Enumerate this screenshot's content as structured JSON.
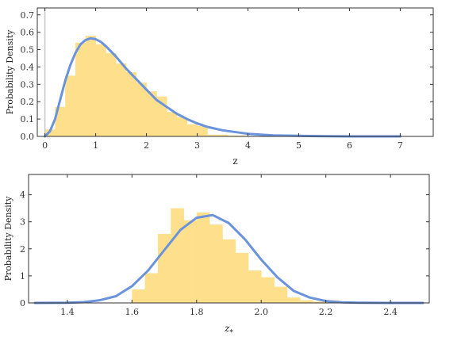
{
  "chart_data": [
    {
      "type": "bar",
      "subtype": "histogram-with-density-curve",
      "xlabel": "z",
      "ylabel": "Probability Density",
      "xlim": [
        -0.15,
        7.65
      ],
      "ylim": [
        0,
        0.74
      ],
      "x_ticks": [
        0,
        1,
        2,
        3,
        4,
        5,
        6,
        7
      ],
      "y_ticks": [
        0.0,
        0.1,
        0.2,
        0.3,
        0.4,
        0.5,
        0.6,
        0.7
      ],
      "x_tick_labels": [
        "0",
        "1",
        "2",
        "3",
        "4",
        "5",
        "6",
        "7"
      ],
      "y_tick_labels": [
        "0.0",
        "0.1",
        "0.2",
        "0.3",
        "0.4",
        "0.5",
        "0.6",
        "0.7"
      ],
      "reference_line_x": 0,
      "bin_width": 0.2,
      "bins": [
        {
          "x0": 0.0,
          "value": 0.04
        },
        {
          "x0": 0.2,
          "value": 0.17
        },
        {
          "x0": 0.4,
          "value": 0.35
        },
        {
          "x0": 0.6,
          "value": 0.54
        },
        {
          "x0": 0.8,
          "value": 0.58
        },
        {
          "x0": 1.0,
          "value": 0.53
        },
        {
          "x0": 1.2,
          "value": 0.48
        },
        {
          "x0": 1.4,
          "value": 0.42
        },
        {
          "x0": 1.6,
          "value": 0.37
        },
        {
          "x0": 1.8,
          "value": 0.31
        },
        {
          "x0": 2.0,
          "value": 0.26
        },
        {
          "x0": 2.2,
          "value": 0.23
        },
        {
          "x0": 2.4,
          "value": 0.14
        },
        {
          "x0": 2.6,
          "value": 0.11
        },
        {
          "x0": 2.8,
          "value": 0.07
        },
        {
          "x0": 3.0,
          "value": 0.06
        },
        {
          "x0": 3.2,
          "value": 0.01
        },
        {
          "x0": 3.4,
          "value": 0.01
        },
        {
          "x0": 3.6,
          "value": 0.005
        },
        {
          "x0": 3.8,
          "value": 0.005
        }
      ],
      "curve": {
        "x": [
          0.0,
          0.1,
          0.2,
          0.3,
          0.4,
          0.5,
          0.6,
          0.7,
          0.8,
          0.9,
          1.0,
          1.1,
          1.2,
          1.4,
          1.6,
          1.8,
          2.0,
          2.2,
          2.4,
          2.6,
          2.8,
          3.0,
          3.2,
          3.5,
          4.0,
          4.5,
          5.0,
          5.5,
          6.0,
          6.5,
          7.0
        ],
        "y": [
          0.0,
          0.03,
          0.1,
          0.21,
          0.32,
          0.41,
          0.48,
          0.53,
          0.555,
          0.565,
          0.56,
          0.545,
          0.52,
          0.46,
          0.39,
          0.33,
          0.27,
          0.21,
          0.17,
          0.13,
          0.1,
          0.075,
          0.055,
          0.035,
          0.015,
          0.006,
          0.003,
          0.001,
          0.0,
          0.0,
          0.0
        ]
      },
      "colors": {
        "bars": "#fedf8c",
        "curve": "#6a93db",
        "reference_line": "#c8c8c8"
      }
    },
    {
      "type": "bar",
      "subtype": "histogram-with-density-curve",
      "xlabel": "z",
      "xlabel_subscript": "*",
      "ylabel": "Probability Density",
      "xlim": [
        1.28,
        2.52
      ],
      "ylim": [
        0,
        4.75
      ],
      "x_ticks": [
        1.4,
        1.6,
        1.8,
        2.0,
        2.2,
        2.4
      ],
      "y_ticks": [
        0,
        1,
        2,
        3,
        4
      ],
      "x_tick_labels": [
        "1.4",
        "1.6",
        "1.8",
        "2.0",
        "2.2",
        "2.4"
      ],
      "y_tick_labels": [
        "0",
        "1",
        "2",
        "3",
        "4"
      ],
      "bin_width": 0.04,
      "bins": [
        {
          "x0": 1.6,
          "value": 0.5
        },
        {
          "x0": 1.64,
          "value": 1.1
        },
        {
          "x0": 1.68,
          "value": 2.55
        },
        {
          "x0": 1.72,
          "value": 3.5
        },
        {
          "x0": 1.76,
          "value": 3.05
        },
        {
          "x0": 1.8,
          "value": 3.35
        },
        {
          "x0": 1.84,
          "value": 2.9
        },
        {
          "x0": 1.88,
          "value": 2.35
        },
        {
          "x0": 1.92,
          "value": 1.85
        },
        {
          "x0": 1.96,
          "value": 1.2
        },
        {
          "x0": 2.0,
          "value": 0.95
        },
        {
          "x0": 2.04,
          "value": 0.6
        },
        {
          "x0": 2.08,
          "value": 0.2
        },
        {
          "x0": 2.12,
          "value": 0.1
        },
        {
          "x0": 2.16,
          "value": 0.05
        },
        {
          "x0": 2.2,
          "value": 0.1
        },
        {
          "x0": 2.4,
          "value": 0.02
        }
      ],
      "curve": {
        "x": [
          1.3,
          1.4,
          1.45,
          1.5,
          1.55,
          1.6,
          1.65,
          1.7,
          1.75,
          1.8,
          1.85,
          1.9,
          1.95,
          2.0,
          2.05,
          2.1,
          2.15,
          2.2,
          2.25,
          2.3,
          2.4,
          2.5
        ],
        "y": [
          0.0,
          0.01,
          0.03,
          0.1,
          0.25,
          0.62,
          1.2,
          1.95,
          2.7,
          3.15,
          3.25,
          2.95,
          2.35,
          1.6,
          0.95,
          0.45,
          0.2,
          0.07,
          0.02,
          0.005,
          0.0,
          0.0
        ]
      },
      "colors": {
        "bars": "#fedf8c",
        "curve": "#6a93db"
      }
    }
  ]
}
